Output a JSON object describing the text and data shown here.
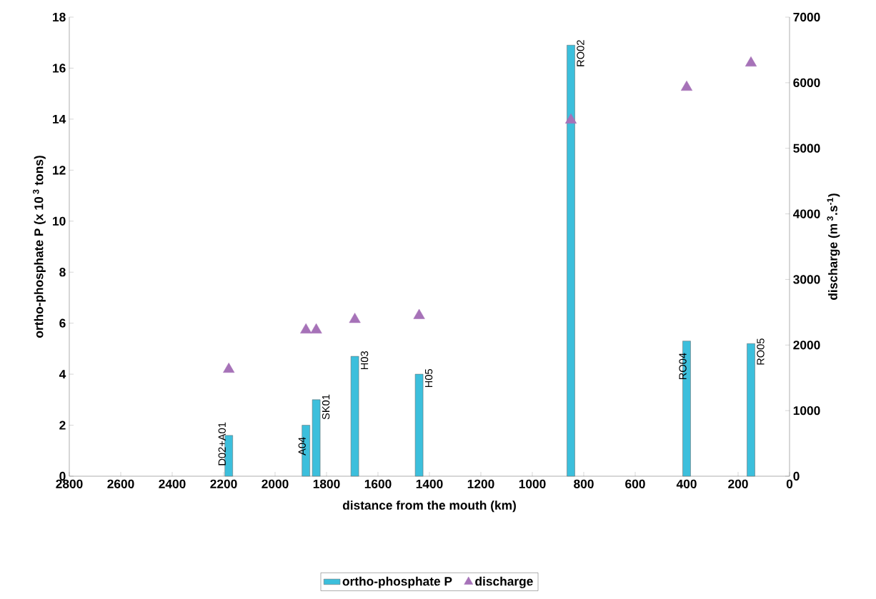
{
  "chart_data": {
    "type": "bar",
    "xlabel": "distance from the mouth (km)",
    "ylabel": "ortho-phosphate P (x 10$^{ 3}$ tons)",
    "y2label": "discharge (m$^{ 3}$.s$^{-1}$)",
    "x": [
      2180,
      1880,
      1840,
      1690,
      1440,
      850,
      400,
      150
    ],
    "series": [
      {
        "name": "ortho-phosphate P",
        "color": "#3cbfdc",
        "values": [
          1.6,
          2.0,
          3.0,
          4.7,
          4.0,
          16.9,
          5.3,
          5.2
        ]
      },
      {
        "name": "discharge",
        "type": "scatter",
        "axis": "y2",
        "marker": "triangle",
        "color": "#a672b8",
        "values": [
          1630,
          2230,
          2230,
          2390,
          2450,
          5430,
          5930,
          6300
        ]
      }
    ],
    "annotations": [
      {
        "text": "D02+A01",
        "x": 2180,
        "y": 1.6
      },
      {
        "text": "A04",
        "x": 1880,
        "y": 2.0
      },
      {
        "text": "SK01",
        "x": 1840,
        "y": 3.0
      },
      {
        "text": "H03",
        "x": 1690,
        "y": 4.7
      },
      {
        "text": "H05",
        "x": 1440,
        "y": 4.0
      },
      {
        "text": "RO02",
        "x": 850,
        "y": 16.9
      },
      {
        "text": "RO04",
        "x": 400,
        "y": 5.3
      },
      {
        "text": "RO05",
        "x": 150,
        "y": 5.2
      }
    ],
    "xlim": [
      2800,
      0
    ],
    "xticks": [
      2800,
      2600,
      2400,
      2200,
      2000,
      1800,
      1600,
      1400,
      1200,
      1000,
      800,
      600,
      400,
      200,
      0
    ],
    "ylim": [
      0,
      18
    ],
    "yticks": [
      0,
      2,
      4,
      6,
      8,
      10,
      12,
      14,
      16,
      18
    ],
    "y2lim": [
      0,
      7000
    ],
    "y2ticks": [
      0,
      1000,
      2000,
      3000,
      4000,
      5000,
      6000,
      7000
    ],
    "legend": "bottom",
    "grid": false
  }
}
